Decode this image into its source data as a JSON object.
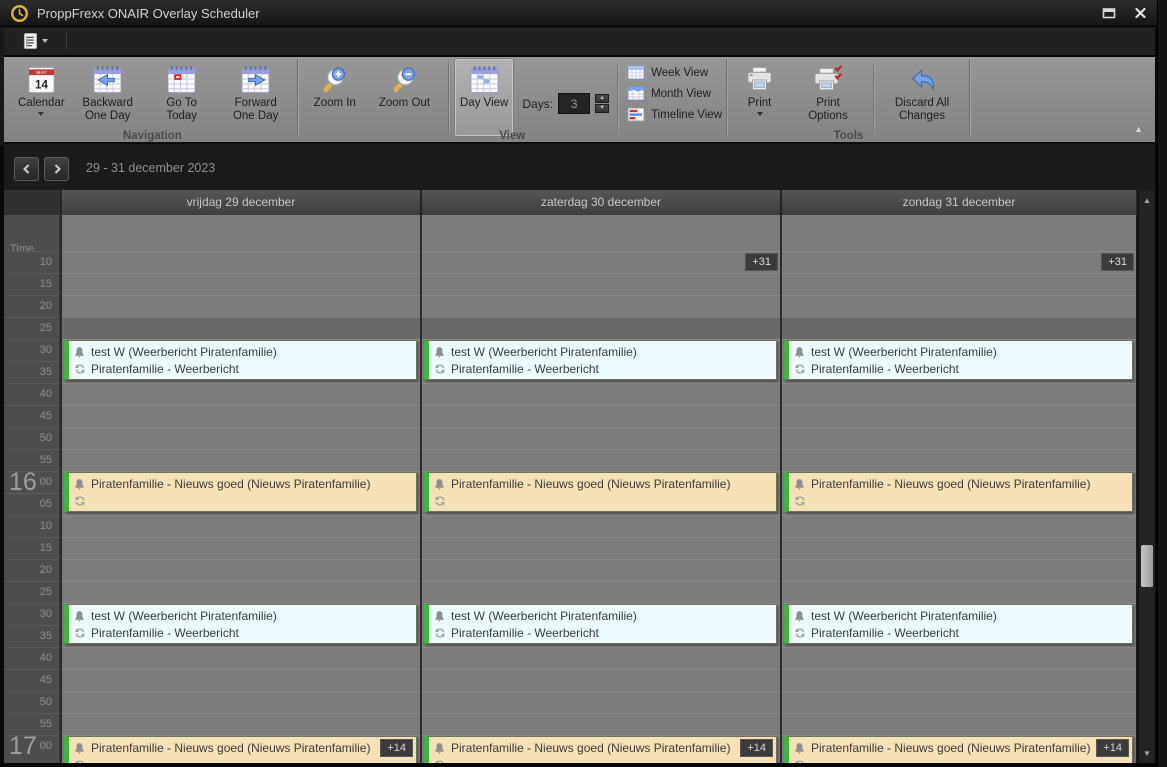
{
  "window": {
    "title": "ProppFrexx ONAIR Overlay Scheduler"
  },
  "ribbon": {
    "navigation": {
      "label": "Navigation",
      "calendar": "Calendar",
      "backward": "Backward One Day",
      "today": "Go To Today",
      "forward": "Forward One Day"
    },
    "view": {
      "label": "View",
      "zoom_in": "Zoom In",
      "zoom_out": "Zoom Out",
      "day_view": "Day View",
      "days_label": "Days:",
      "days_value": "3",
      "week_view": "Week View",
      "month_view": "Month View",
      "timeline_view": "Timeline View"
    },
    "tools": {
      "label": "Tools",
      "print": "Print",
      "print_options": "Print Options",
      "discard": "Discard All Changes"
    }
  },
  "datenav": {
    "range": "29 - 31 december 2023"
  },
  "icons": {
    "scroll_up": "▲",
    "scroll_down": "▼",
    "collapse_ribbon": "▲"
  },
  "colors": {
    "event_weather_bg": "#eefbfe",
    "event_news_bg": "#f6e0b5",
    "event_left_border": "#3cb53c",
    "badge_bg": "#3b3b3b",
    "grid_cell_bg": "#7c7c7c",
    "highlight_row_bg": "#696969"
  },
  "calendar": {
    "time_axis_label": "Time",
    "minute_rows": [
      "10",
      "15",
      "20",
      "25",
      "30",
      "35",
      "40",
      "45",
      "50",
      "55",
      "00",
      "05",
      "10",
      "15",
      "20",
      "25",
      "30",
      "35",
      "40",
      "45",
      "50",
      "55",
      "00"
    ],
    "highlight_row": 3,
    "hours": [
      {
        "label": "16",
        "row": 10
      },
      {
        "label": "17",
        "row": 22
      }
    ],
    "days": [
      {
        "header": "vrijdag 29 december",
        "overflow_badge": null,
        "events": [
          {
            "kind": "weather",
            "row": 4,
            "title": "test W (Weerbericht Piratenfamilie)",
            "subtitle": "Piratenfamilie - Weerbericht",
            "badge": null
          },
          {
            "kind": "news",
            "row": 10,
            "title": "Piratenfamilie - Nieuws goed (Nieuws Piratenfamilie)",
            "subtitle": "",
            "badge": null
          },
          {
            "kind": "weather",
            "row": 16,
            "title": "test W (Weerbericht Piratenfamilie)",
            "subtitle": "Piratenfamilie - Weerbericht",
            "badge": null
          },
          {
            "kind": "news",
            "row": 22,
            "title": "Piratenfamilie - Nieuws goed (Nieuws Piratenfamilie)",
            "subtitle": "",
            "badge": "+14"
          }
        ]
      },
      {
        "header": "zaterdag 30 december",
        "overflow_badge": "+31",
        "events": [
          {
            "kind": "weather",
            "row": 4,
            "title": "test W (Weerbericht Piratenfamilie)",
            "subtitle": "Piratenfamilie - Weerbericht",
            "badge": null
          },
          {
            "kind": "news",
            "row": 10,
            "title": "Piratenfamilie - Nieuws goed (Nieuws Piratenfamilie)",
            "subtitle": "",
            "badge": null
          },
          {
            "kind": "weather",
            "row": 16,
            "title": "test W (Weerbericht Piratenfamilie)",
            "subtitle": "Piratenfamilie - Weerbericht",
            "badge": null
          },
          {
            "kind": "news",
            "row": 22,
            "title": "Piratenfamilie - Nieuws goed (Nieuws Piratenfamilie)",
            "subtitle": "",
            "badge": "+14"
          }
        ]
      },
      {
        "header": "zondag 31 december",
        "overflow_badge": "+31",
        "events": [
          {
            "kind": "weather",
            "row": 4,
            "title": "test W (Weerbericht Piratenfamilie)",
            "subtitle": "Piratenfamilie - Weerbericht",
            "badge": null
          },
          {
            "kind": "news",
            "row": 10,
            "title": "Piratenfamilie - Nieuws goed (Nieuws Piratenfamilie)",
            "subtitle": "",
            "badge": null
          },
          {
            "kind": "weather",
            "row": 16,
            "title": "test W (Weerbericht Piratenfamilie)",
            "subtitle": "Piratenfamilie - Weerbericht",
            "badge": null
          },
          {
            "kind": "news",
            "row": 22,
            "title": "Piratenfamilie - Nieuws goed (Nieuws Piratenfamilie)",
            "subtitle": "",
            "badge": "+14"
          }
        ]
      }
    ]
  }
}
